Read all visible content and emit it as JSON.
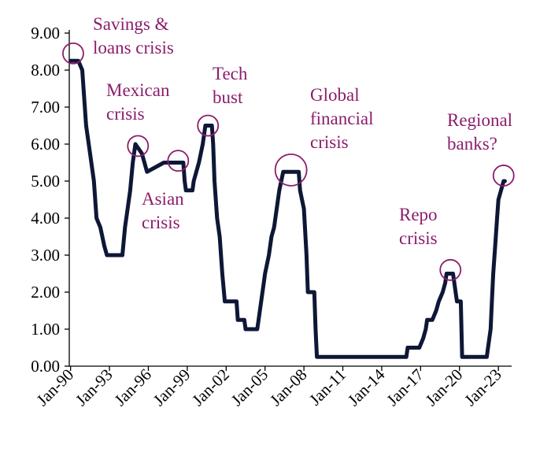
{
  "chart_data": {
    "type": "line",
    "title": "",
    "xlabel": "",
    "ylabel": "",
    "ylim": [
      0,
      9
    ],
    "grid": false,
    "legend": "none",
    "y_ticks": [
      "0.00",
      "1.00",
      "2.00",
      "3.00",
      "4.00",
      "5.00",
      "6.00",
      "7.00",
      "8.00",
      "9.00"
    ],
    "x_ticks": [
      "Jan-90",
      "Jan-93",
      "Jan-96",
      "Jan-99",
      "Jan-02",
      "Jan-05",
      "Jan-08",
      "Jan-11",
      "Jan-14",
      "Jan-17",
      "Jan-20",
      "Jan-23"
    ],
    "xlim": [
      1989.9,
      2023.9
    ],
    "colors": {
      "line": "#0f1737",
      "annotation": "#8b1d6b",
      "axis": "#000000"
    },
    "series": [
      {
        "points": [
          [
            1990.0,
            8.25
          ],
          [
            1990.6,
            8.25
          ],
          [
            1990.9,
            8.0
          ],
          [
            1991.2,
            6.5
          ],
          [
            1991.5,
            5.75
          ],
          [
            1991.8,
            5.0
          ],
          [
            1992.0,
            4.0
          ],
          [
            1992.3,
            3.75
          ],
          [
            1992.6,
            3.25
          ],
          [
            1992.8,
            3.0
          ],
          [
            1994.0,
            3.0
          ],
          [
            1994.2,
            3.75
          ],
          [
            1994.4,
            4.25
          ],
          [
            1994.6,
            4.75
          ],
          [
            1994.8,
            5.5
          ],
          [
            1995.0,
            6.0
          ],
          [
            1995.5,
            5.75
          ],
          [
            1995.9,
            5.25
          ],
          [
            1997.2,
            5.5
          ],
          [
            1998.7,
            5.5
          ],
          [
            1998.8,
            5.0
          ],
          [
            1998.9,
            4.75
          ],
          [
            1999.4,
            4.75
          ],
          [
            1999.5,
            5.0
          ],
          [
            1999.7,
            5.25
          ],
          [
            1999.9,
            5.5
          ],
          [
            2000.2,
            6.0
          ],
          [
            2000.4,
            6.5
          ],
          [
            2000.9,
            6.5
          ],
          [
            2001.0,
            6.0
          ],
          [
            2001.1,
            5.0
          ],
          [
            2001.3,
            4.0
          ],
          [
            2001.5,
            3.5
          ],
          [
            2001.7,
            2.5
          ],
          [
            2001.9,
            1.75
          ],
          [
            2002.8,
            1.75
          ],
          [
            2002.9,
            1.25
          ],
          [
            2003.4,
            1.25
          ],
          [
            2003.5,
            1.0
          ],
          [
            2004.4,
            1.0
          ],
          [
            2004.5,
            1.25
          ],
          [
            2004.7,
            1.75
          ],
          [
            2004.9,
            2.25
          ],
          [
            2005.0,
            2.5
          ],
          [
            2005.3,
            3.0
          ],
          [
            2005.5,
            3.5
          ],
          [
            2005.7,
            3.75
          ],
          [
            2005.9,
            4.25
          ],
          [
            2006.1,
            4.75
          ],
          [
            2006.4,
            5.25
          ],
          [
            2007.6,
            5.25
          ],
          [
            2007.7,
            4.75
          ],
          [
            2008.0,
            4.25
          ],
          [
            2008.2,
            3.0
          ],
          [
            2008.3,
            2.0
          ],
          [
            2008.8,
            2.0
          ],
          [
            2008.9,
            1.0
          ],
          [
            2009.0,
            0.25
          ],
          [
            2015.9,
            0.25
          ],
          [
            2016.0,
            0.5
          ],
          [
            2016.9,
            0.5
          ],
          [
            2017.2,
            0.75
          ],
          [
            2017.4,
            1.0
          ],
          [
            2017.5,
            1.25
          ],
          [
            2017.9,
            1.25
          ],
          [
            2018.2,
            1.5
          ],
          [
            2018.4,
            1.75
          ],
          [
            2018.7,
            2.0
          ],
          [
            2018.9,
            2.25
          ],
          [
            2019.0,
            2.5
          ],
          [
            2019.5,
            2.5
          ],
          [
            2019.6,
            2.25
          ],
          [
            2019.7,
            2.0
          ],
          [
            2019.8,
            1.75
          ],
          [
            2020.1,
            1.75
          ],
          [
            2020.2,
            0.25
          ],
          [
            2022.1,
            0.25
          ],
          [
            2022.2,
            0.5
          ],
          [
            2022.4,
            1.0
          ],
          [
            2022.5,
            1.75
          ],
          [
            2022.6,
            2.5
          ],
          [
            2022.75,
            3.25
          ],
          [
            2022.9,
            4.0
          ],
          [
            2023.0,
            4.5
          ],
          [
            2023.2,
            4.75
          ],
          [
            2023.4,
            5.0
          ],
          [
            2023.5,
            5.0
          ]
        ]
      }
    ],
    "annotations": [
      {
        "lines": [
          "Savings &",
          "loans crisis"
        ],
        "circle": [
          1990.2,
          8.45
        ]
      },
      {
        "lines": [
          "Mexican",
          "crisis"
        ],
        "circle": [
          1995.2,
          5.95
        ]
      },
      {
        "lines": [
          "Asian",
          "crisis"
        ],
        "circle": [
          1998.3,
          5.55
        ]
      },
      {
        "lines": [
          "Tech",
          "bust"
        ],
        "circle": [
          2000.6,
          6.5
        ]
      },
      {
        "lines": [
          "Global",
          "financial",
          "crisis"
        ],
        "circle": [
          2007.0,
          5.3
        ]
      },
      {
        "lines": [
          "Repo",
          "crisis"
        ],
        "circle": [
          2019.3,
          2.6
        ]
      },
      {
        "lines": [
          "Regional",
          "banks?"
        ],
        "circle": [
          2023.4,
          5.15
        ]
      }
    ]
  }
}
